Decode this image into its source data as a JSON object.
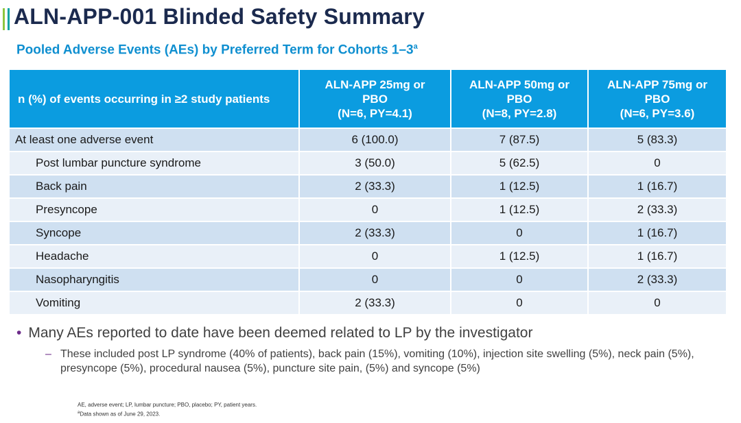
{
  "header": {
    "title": "ALN-APP-001 Blinded Safety Summary",
    "subtitle": "Pooled Adverse Events (AEs) by Preferred Term for Cohorts 1–3",
    "subtitle_sup": "a"
  },
  "table": {
    "header_col0": "n (%) of events occurring in ≥2 study patients",
    "columns": [
      {
        "line1": "ALN-APP 25mg or",
        "line2": "PBO",
        "line3": "(N=6, PY=4.1)"
      },
      {
        "line1": "ALN-APP 50mg or",
        "line2": "PBO",
        "line3": "(N=8, PY=2.8)"
      },
      {
        "line1": "ALN-APP 75mg or",
        "line2": "PBO",
        "line3": "(N=6, PY=3.6)"
      }
    ],
    "rows": [
      {
        "label": "At least one adverse event",
        "v": [
          "6 (100.0)",
          "7 (87.5)",
          "5 (83.3)"
        ]
      },
      {
        "label": "Post lumbar puncture syndrome",
        "v": [
          "3 (50.0)",
          "5 (62.5)",
          "0"
        ]
      },
      {
        "label": "Back pain",
        "v": [
          "2 (33.3)",
          "1 (12.5)",
          "1 (16.7)"
        ]
      },
      {
        "label": "Presyncope",
        "v": [
          "0",
          "1 (12.5)",
          "2 (33.3)"
        ]
      },
      {
        "label": "Syncope",
        "v": [
          "2 (33.3)",
          "0",
          "1 (16.7)"
        ]
      },
      {
        "label": "Headache",
        "v": [
          "0",
          "1 (12.5)",
          "1 (16.7)"
        ]
      },
      {
        "label": "Nasopharyngitis",
        "v": [
          "0",
          "0",
          "2 (33.3)"
        ]
      },
      {
        "label": "Vomiting",
        "v": [
          "2 (33.3)",
          "0",
          "0"
        ]
      }
    ]
  },
  "bullets": {
    "main": "Many AEs reported to date have been deemed related to LP by the investigator",
    "sub": "These included post LP syndrome (40% of patients), back pain (15%), vomiting (10%), injection site swelling (5%), neck pain (5%), presyncope (5%), procedural nausea (5%), puncture site pain, (5%) and syncope (5%)"
  },
  "footnotes": {
    "abbrev": "AE, adverse event; LP, lumbar puncture; PBO, placebo; PY, patient years.",
    "note_sup": "a",
    "note": "Data shown as of June 29, 2023."
  },
  "colors": {
    "title": "#1b2a4e",
    "subtitle": "#0f8fd0",
    "table_header": "#0b9ce0",
    "row_dark": "#cfe0f1",
    "row_light": "#e9f0f8",
    "bullet_marker": "#6d2c8a"
  }
}
